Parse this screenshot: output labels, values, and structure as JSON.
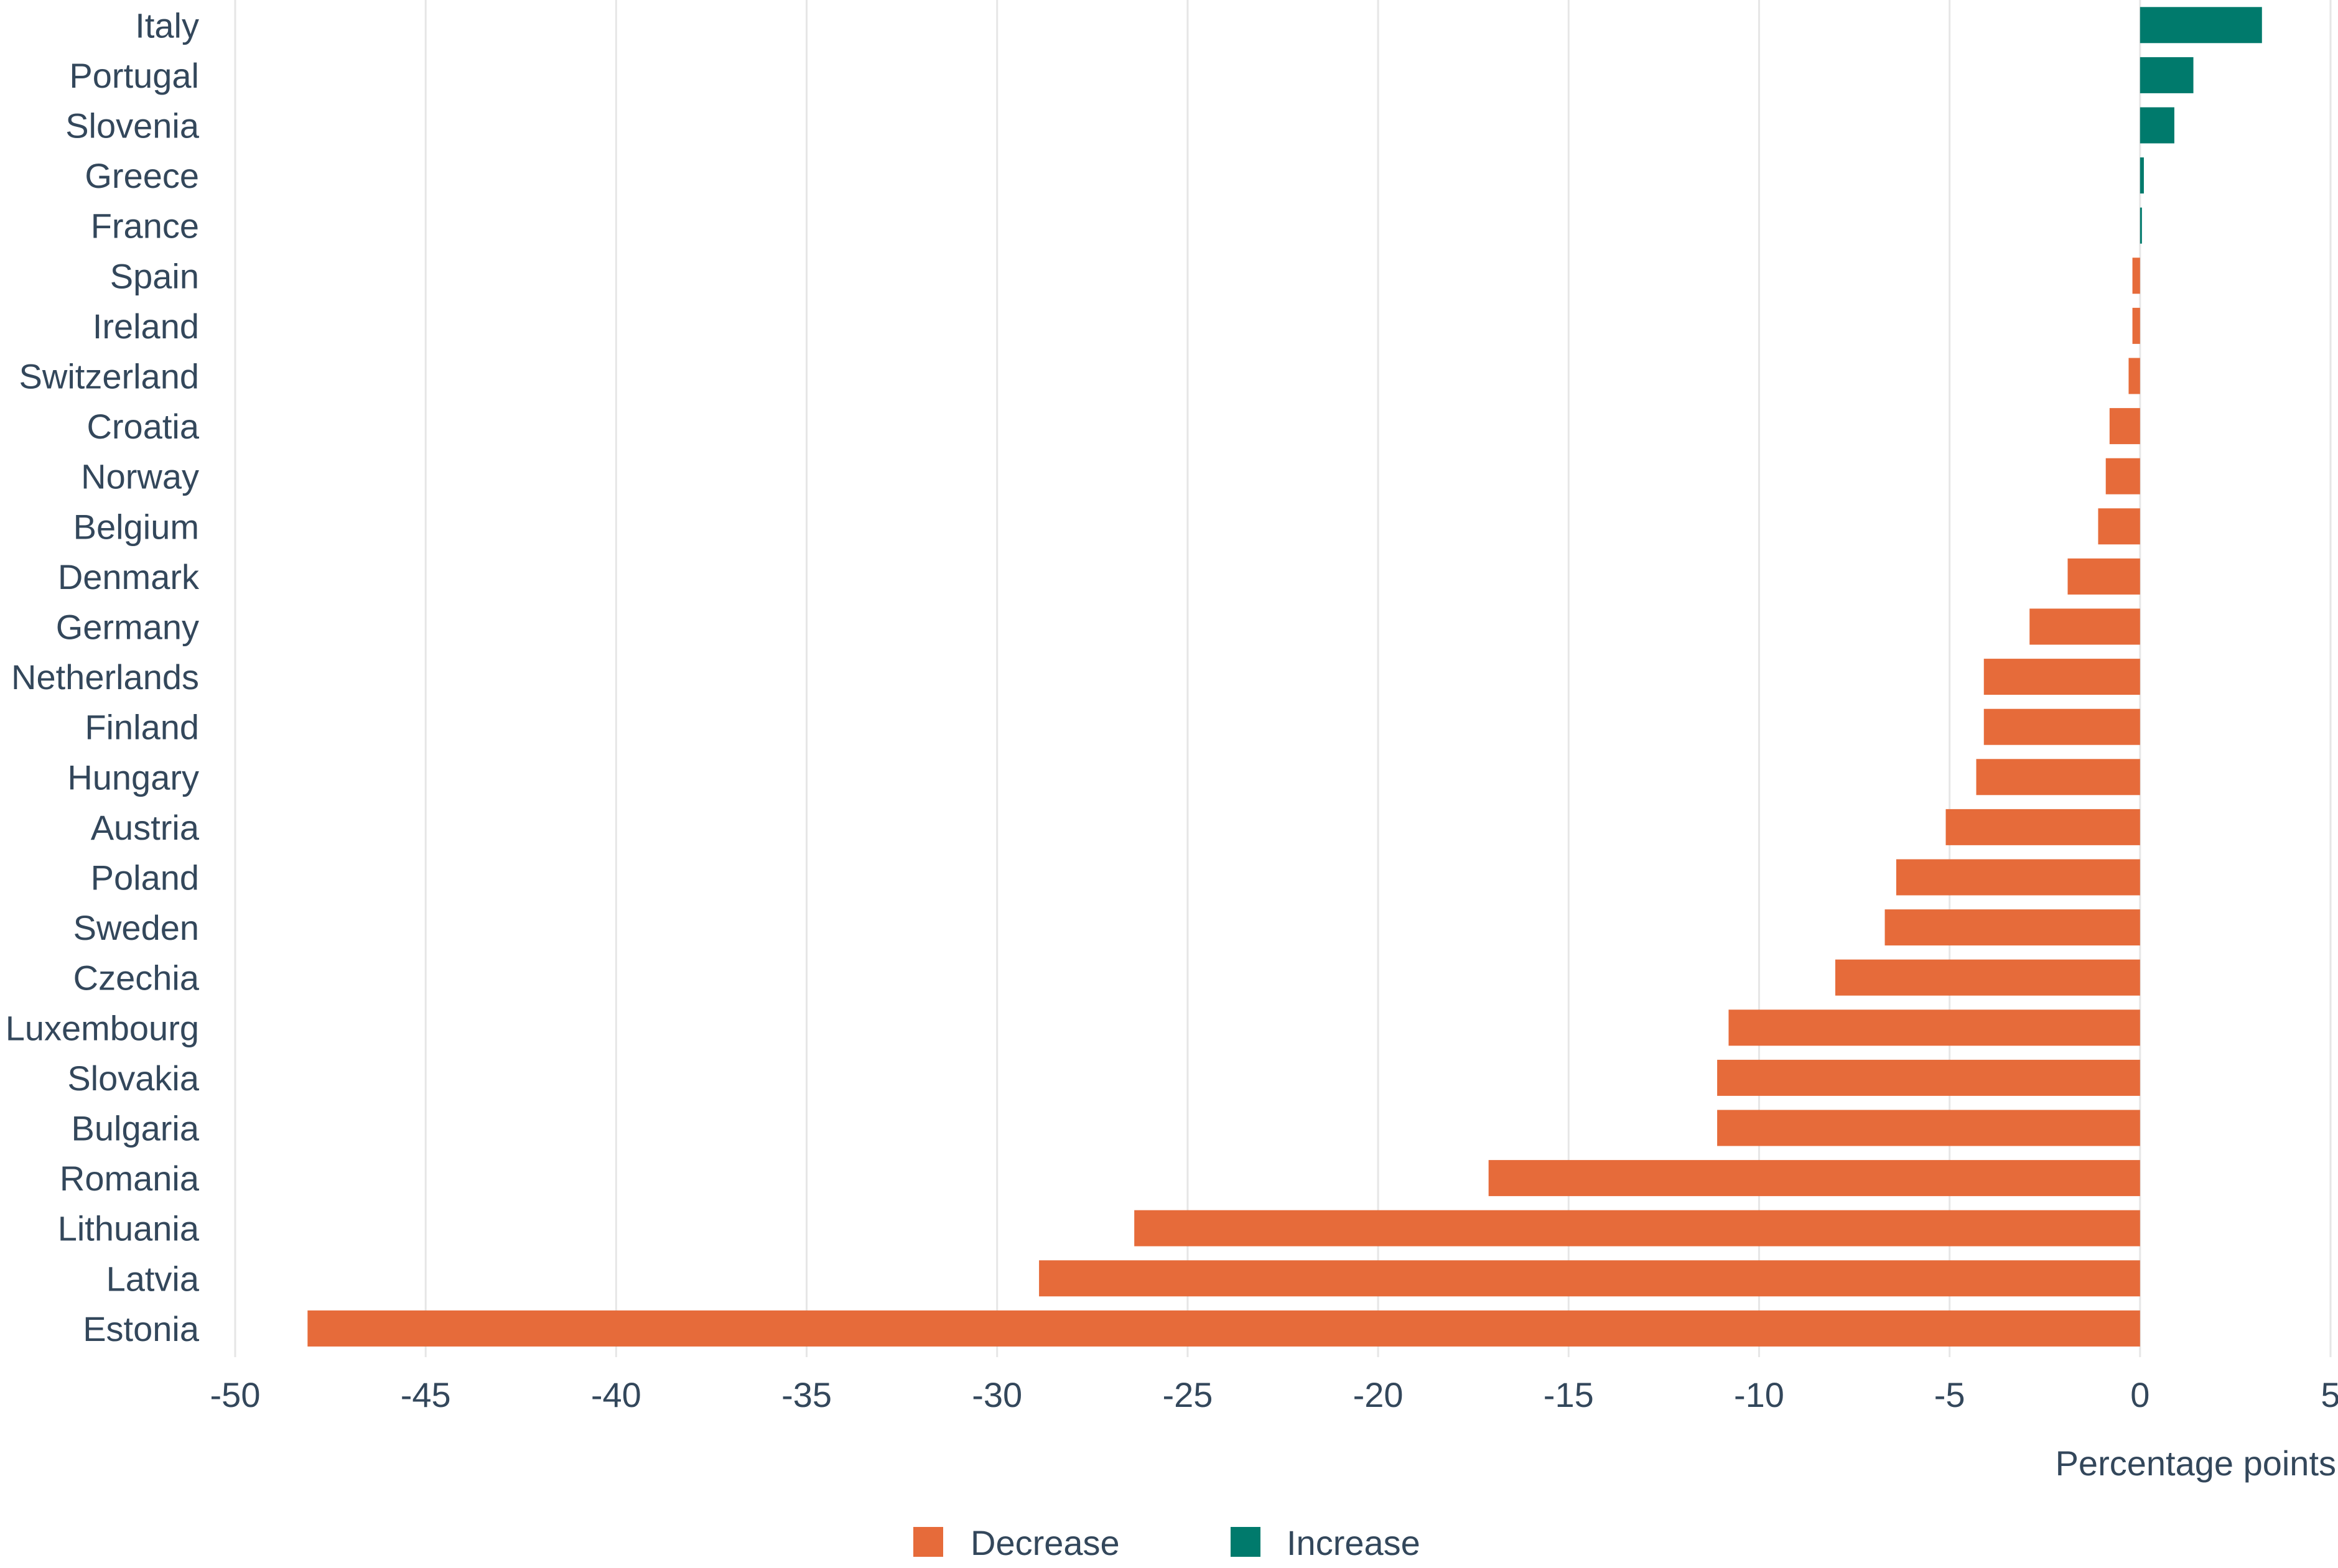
{
  "chart_data": {
    "type": "bar",
    "orientation": "horizontal",
    "title": "",
    "xlabel": "Percentage points",
    "ylabel": "",
    "xlim": [
      -50,
      5
    ],
    "x_ticks": [
      -50,
      -45,
      -40,
      -35,
      -30,
      -25,
      -20,
      -15,
      -10,
      -5,
      0,
      5
    ],
    "grid": "vertical",
    "legend_position": "bottom-center",
    "categories": [
      "Italy",
      "Portugal",
      "Slovenia",
      "Greece",
      "France",
      "Spain",
      "Ireland",
      "Switzerland",
      "Croatia",
      "Norway",
      "Belgium",
      "Denmark",
      "Germany",
      "Netherlands",
      "Finland",
      "Hungary",
      "Austria",
      "Poland",
      "Sweden",
      "Czechia",
      "Luxembourg",
      "Slovakia",
      "Bulgaria",
      "Romania",
      "Lithuania",
      "Latvia",
      "Estonia"
    ],
    "values": [
      3.2,
      1.4,
      0.9,
      0.1,
      0.0,
      -0.2,
      -0.2,
      -0.3,
      -0.8,
      -0.9,
      -1.1,
      -1.9,
      -2.9,
      -4.1,
      -4.1,
      -4.3,
      -5.1,
      -6.4,
      -6.7,
      -8.0,
      -10.8,
      -11.1,
      -11.1,
      -17.1,
      -26.4,
      -28.9,
      -48.1
    ],
    "legend": [
      {
        "name": "Decrease",
        "color": "#e66b3a"
      },
      {
        "name": "Increase",
        "color": "#007a6c"
      }
    ]
  },
  "colors": {
    "decrease": "#e66b3a",
    "increase": "#007a6c",
    "grid": "#e6e6e6",
    "text": "#33475b"
  }
}
